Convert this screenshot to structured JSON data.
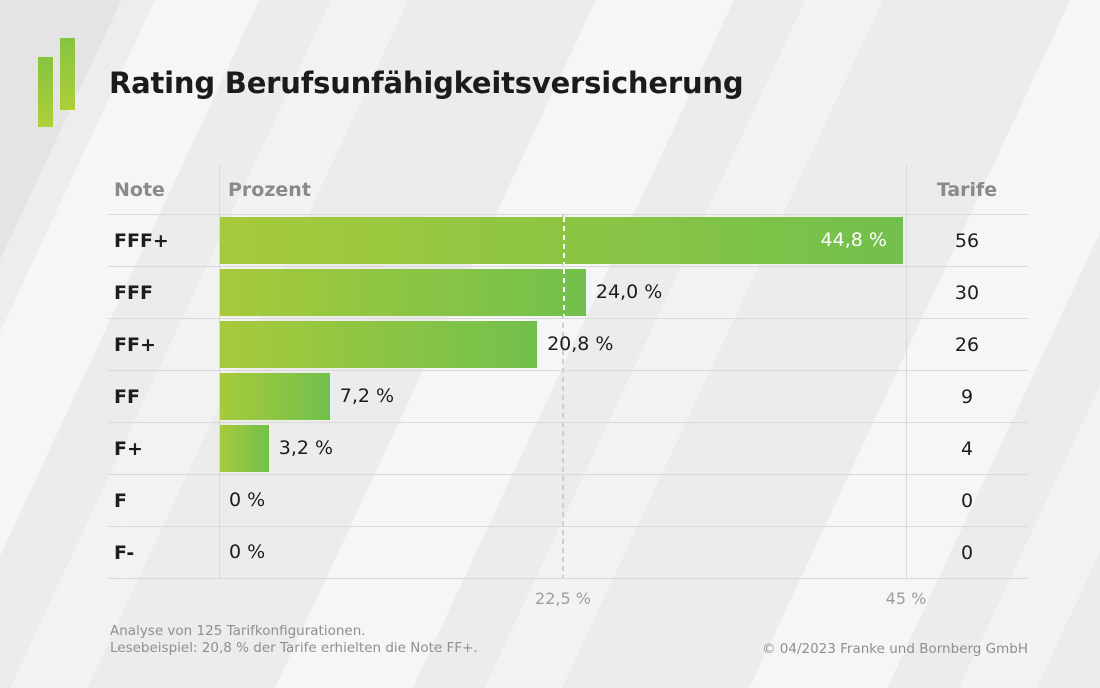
{
  "title": "Rating Berufsunfähigkeitsversicherung",
  "logo": {
    "name": "franke-bornberg-logo",
    "color_top": "#85c441",
    "color_bottom": "#aed037"
  },
  "table": {
    "headers": {
      "note": "Note",
      "prozent": "Prozent",
      "tarife": "Tarife"
    }
  },
  "chart_data": {
    "type": "bar",
    "orientation": "horizontal",
    "title": "Rating Berufsunfähigkeitsversicherung",
    "columns": [
      "Note",
      "Prozent",
      "Tarife"
    ],
    "categories": [
      "FFF+",
      "FFF",
      "FF+",
      "FF",
      "F+",
      "F",
      "F-"
    ],
    "values": [
      44.8,
      24.0,
      20.8,
      7.2,
      3.2,
      0,
      0
    ],
    "value_labels": [
      "44,8 %",
      "24,0 %",
      "20,8 %",
      "7,2 %",
      "3,2 %",
      "0 %",
      "0 %"
    ],
    "tarife": [
      56,
      30,
      26,
      9,
      4,
      0,
      0
    ],
    "xlim": [
      0,
      45
    ],
    "gridline": {
      "value": 22.5,
      "style": "dashed"
    },
    "axis_ticks": [
      {
        "value": 22.5,
        "label": "22,5 %"
      },
      {
        "value": 45,
        "label": "45 %"
      }
    ],
    "bar_gradient": [
      "#a7ca3b",
      "#72c04c"
    ],
    "grid": "off",
    "legend": "none"
  },
  "footer": {
    "note_line1": "Analyse von 125 Tarifkonfigurationen.",
    "note_line2": "Lesebeispiel: 20,8 % der Tarife erhielten die Note FF+.",
    "copyright": "© 04/2023 Franke und Bornberg GmbH"
  }
}
